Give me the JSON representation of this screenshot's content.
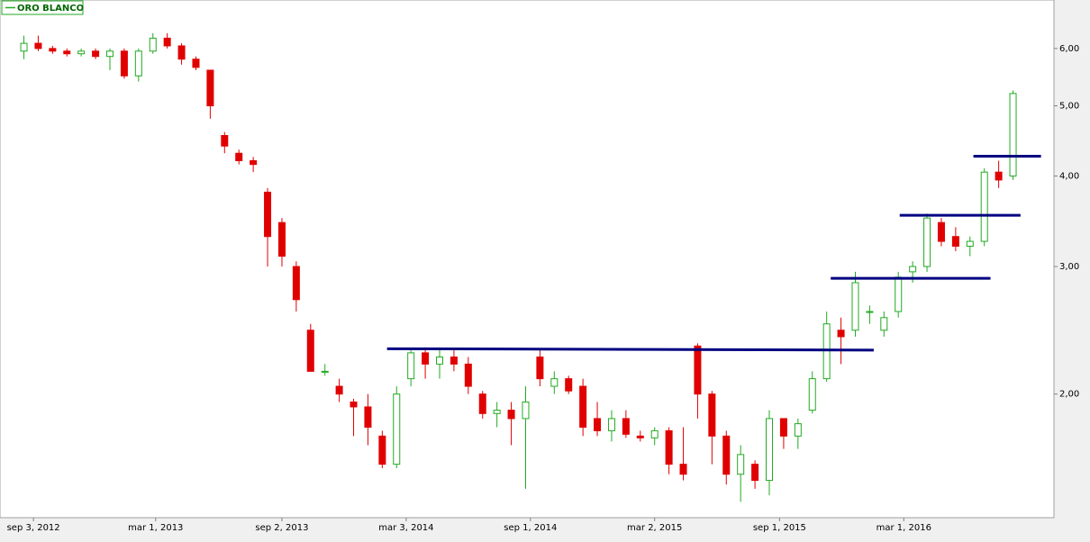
{
  "chart_data": {
    "type": "candlestick",
    "series_name": "ORO BLANCO",
    "up_color": "#22aa22",
    "down_color": "#e00000",
    "log_scale": true,
    "xlim": [
      "2012-07-16",
      "2016-10-07"
    ],
    "xticks": [
      {
        "value": "2012-09-03",
        "label": "sep 3, 2012"
      },
      {
        "value": "2013-03-01",
        "label": "mar 1, 2013"
      },
      {
        "value": "2013-09-02",
        "label": "sep 2, 2013"
      },
      {
        "value": "2014-03-03",
        "label": "mar 3, 2014"
      },
      {
        "value": "2014-09-01",
        "label": "sep 1, 2014"
      },
      {
        "value": "2015-03-02",
        "label": "mar 2, 2015"
      },
      {
        "value": "2015-09-01",
        "label": "sep 1, 2015"
      },
      {
        "value": "2016-03-01",
        "label": "mar 1, 2016"
      }
    ],
    "ylim": [
      1.35,
      7.0
    ],
    "yticks": [
      {
        "value": 2,
        "label": "2,00"
      },
      {
        "value": 3,
        "label": "3,00"
      },
      {
        "value": 4,
        "label": "4,00"
      },
      {
        "value": 5,
        "label": "5,00"
      },
      {
        "value": 6,
        "label": "6,00"
      }
    ],
    "x": [
      "2012-08-20",
      "2012-09-10",
      "2012-10-01",
      "2012-10-22",
      "2012-11-12",
      "2012-12-03",
      "2012-12-24",
      "2013-01-14",
      "2013-02-04",
      "2013-02-25",
      "2013-03-18",
      "2013-04-08",
      "2013-04-29",
      "2013-05-20",
      "2013-06-10",
      "2013-07-01",
      "2013-07-22",
      "2013-08-12",
      "2013-09-02",
      "2013-09-23",
      "2013-10-14",
      "2013-11-04",
      "2013-11-25",
      "2013-12-16",
      "2014-01-06",
      "2014-01-27",
      "2014-02-17",
      "2014-03-10",
      "2014-03-31",
      "2014-04-21",
      "2014-05-12",
      "2014-06-02",
      "2014-06-23",
      "2014-07-14",
      "2014-08-04",
      "2014-08-25",
      "2014-09-15",
      "2014-10-06",
      "2014-10-27",
      "2014-11-17",
      "2014-12-08",
      "2014-12-29",
      "2015-01-19",
      "2015-02-09",
      "2015-03-02",
      "2015-03-23",
      "2015-04-13",
      "2015-05-04",
      "2015-05-25",
      "2015-06-15",
      "2015-07-06",
      "2015-07-27",
      "2015-08-17",
      "2015-09-07",
      "2015-09-28",
      "2015-10-19",
      "2015-11-09",
      "2015-11-30",
      "2015-12-21",
      "2016-01-11",
      "2016-02-01",
      "2016-02-22",
      "2016-03-14",
      "2016-04-04",
      "2016-04-25",
      "2016-05-16",
      "2016-06-06",
      "2016-06-27",
      "2016-07-18",
      "2016-08-08"
    ],
    "open": [
      5.95,
      6.1,
      6.0,
      5.95,
      5.9,
      5.95,
      5.85,
      5.95,
      5.5,
      5.95,
      6.2,
      6.05,
      5.8,
      5.6,
      4.55,
      4.3,
      4.2,
      3.8,
      3.45,
      3.0,
      2.45,
      2.15,
      2.05,
      1.95,
      1.92,
      1.75,
      1.6,
      2.1,
      2.28,
      2.2,
      2.25,
      2.2,
      2.0,
      1.88,
      1.9,
      1.85,
      2.25,
      2.05,
      2.1,
      2.05,
      1.85,
      1.78,
      1.85,
      1.75,
      1.74,
      1.78,
      1.6,
      2.33,
      2.0,
      1.75,
      1.55,
      1.6,
      1.52,
      1.85,
      1.75,
      1.9,
      2.1,
      2.45,
      2.45,
      2.6,
      2.45,
      2.6,
      2.95,
      3.0,
      3.45,
      3.3,
      3.2,
      3.25,
      4.05,
      4.0
    ],
    "high": [
      6.25,
      6.25,
      6.05,
      6.0,
      6.0,
      6.0,
      6.0,
      6.0,
      6.0,
      6.3,
      6.3,
      6.1,
      5.85,
      5.6,
      4.6,
      4.35,
      4.25,
      3.85,
      3.5,
      3.05,
      2.5,
      2.2,
      2.1,
      1.97,
      2.0,
      1.78,
      2.05,
      2.3,
      2.32,
      2.32,
      2.3,
      2.25,
      2.02,
      1.95,
      1.95,
      2.05,
      2.3,
      2.15,
      2.12,
      2.1,
      1.95,
      1.9,
      1.9,
      1.78,
      1.8,
      1.8,
      1.8,
      2.35,
      2.02,
      1.78,
      1.7,
      1.62,
      1.9,
      1.85,
      1.85,
      2.15,
      2.6,
      2.55,
      2.95,
      2.65,
      2.6,
      2.95,
      3.05,
      3.55,
      3.5,
      3.4,
      3.3,
      4.1,
      4.2,
      5.25
    ],
    "low": [
      5.8,
      5.95,
      5.9,
      5.85,
      5.85,
      5.8,
      5.6,
      5.45,
      5.4,
      5.9,
      6.0,
      5.7,
      5.6,
      4.8,
      4.3,
      4.15,
      4.05,
      3.0,
      3.0,
      2.6,
      2.15,
      2.12,
      1.95,
      1.75,
      1.7,
      1.58,
      1.58,
      2.05,
      2.1,
      2.1,
      2.15,
      2.0,
      1.85,
      1.8,
      1.7,
      1.48,
      2.05,
      2.0,
      2.0,
      1.75,
      1.75,
      1.72,
      1.74,
      1.72,
      1.7,
      1.55,
      1.52,
      1.85,
      1.6,
      1.5,
      1.42,
      1.48,
      1.45,
      1.68,
      1.68,
      1.88,
      2.08,
      2.2,
      2.4,
      2.5,
      2.4,
      2.55,
      2.85,
      2.95,
      3.2,
      3.15,
      3.1,
      3.2,
      3.85,
      3.95
    ],
    "close": [
      6.1,
      6.0,
      5.95,
      5.9,
      5.95,
      5.85,
      5.95,
      5.5,
      5.95,
      6.2,
      6.05,
      5.8,
      5.65,
      5.0,
      4.4,
      4.2,
      4.15,
      3.3,
      3.1,
      2.7,
      2.15,
      2.15,
      2.0,
      1.92,
      1.8,
      1.6,
      2.0,
      2.28,
      2.2,
      2.25,
      2.2,
      2.05,
      1.88,
      1.9,
      1.85,
      1.95,
      2.1,
      2.1,
      2.02,
      1.8,
      1.78,
      1.85,
      1.76,
      1.74,
      1.78,
      1.6,
      1.55,
      2.0,
      1.75,
      1.55,
      1.65,
      1.52,
      1.85,
      1.75,
      1.82,
      2.1,
      2.5,
      2.4,
      2.85,
      2.6,
      2.55,
      2.9,
      3.0,
      3.5,
      3.25,
      3.2,
      3.25,
      4.05,
      3.95,
      5.2
    ],
    "lines": [
      {
        "x": [
          "2014-02-03",
          "2016-01-17"
        ],
        "y": [
          2.31,
          2.3
        ],
        "color": "#000080"
      },
      {
        "x": [
          "2015-11-15",
          "2016-07-06"
        ],
        "y": [
          2.89,
          2.89
        ],
        "color": "#000080"
      },
      {
        "x": [
          "2016-02-24",
          "2016-08-19"
        ],
        "y": [
          3.53,
          3.53
        ],
        "color": "#000080"
      },
      {
        "x": [
          "2016-06-11",
          "2016-09-18"
        ],
        "y": [
          4.26,
          4.26
        ],
        "color": "#000080"
      }
    ]
  }
}
